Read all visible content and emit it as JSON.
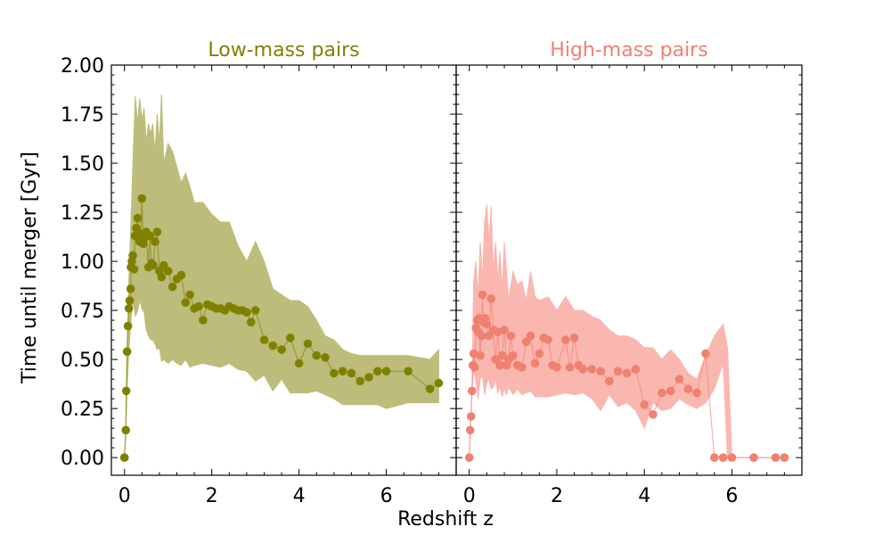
{
  "chart_data": {
    "type": "scatter",
    "xlabel": "Redshift z",
    "ylabel": "Time until merger [Gyr]",
    "ylim": [
      -0.09,
      2.0
    ],
    "yticks": [
      "0.00",
      "0.25",
      "0.50",
      "0.75",
      "1.00",
      "1.25",
      "1.50",
      "1.75",
      "2.00"
    ],
    "xticks": [
      "0",
      "2",
      "4",
      "6"
    ],
    "panels": [
      {
        "title": "Low-mass pairs",
        "color": "#808000",
        "band_color": "#bcbd7a",
        "xlim": [
          -0.3,
          7.6
        ],
        "series": {
          "x": [
            0.0,
            0.03,
            0.04,
            0.06,
            0.08,
            0.1,
            0.12,
            0.14,
            0.15,
            0.17,
            0.19,
            0.22,
            0.24,
            0.27,
            0.3,
            0.32,
            0.35,
            0.37,
            0.4,
            0.43,
            0.46,
            0.5,
            0.55,
            0.58,
            0.62,
            0.66,
            0.7,
            0.75,
            0.8,
            0.85,
            0.9,
            1.0,
            1.1,
            1.2,
            1.3,
            1.4,
            1.5,
            1.6,
            1.7,
            1.8,
            1.9,
            2.0,
            2.1,
            2.2,
            2.3,
            2.4,
            2.5,
            2.6,
            2.7,
            2.8,
            2.9,
            3.0,
            3.2,
            3.4,
            3.6,
            3.8,
            4.0,
            4.2,
            4.4,
            4.6,
            4.8,
            5.0,
            5.2,
            5.4,
            5.6,
            5.8,
            6.0,
            6.5,
            7.0,
            7.2
          ],
          "y": [
            0.0,
            0.14,
            0.34,
            0.54,
            0.67,
            0.76,
            0.8,
            0.86,
            0.97,
            1.0,
            1.03,
            0.96,
            1.13,
            1.17,
            1.22,
            1.12,
            1.1,
            1.14,
            1.32,
            1.09,
            1.12,
            1.15,
            0.97,
            1.13,
            0.99,
            0.98,
            1.1,
            1.15,
            0.95,
            0.92,
            0.98,
            0.95,
            0.87,
            0.91,
            0.93,
            0.79,
            0.83,
            0.76,
            0.77,
            0.7,
            0.78,
            0.77,
            0.76,
            0.76,
            0.75,
            0.77,
            0.76,
            0.75,
            0.75,
            0.74,
            0.69,
            0.75,
            0.6,
            0.57,
            0.55,
            0.61,
            0.48,
            0.58,
            0.52,
            0.51,
            0.43,
            0.44,
            0.43,
            0.39,
            0.41,
            0.44,
            0.44,
            0.44,
            0.35,
            0.38
          ]
        },
        "band": {
          "x": [
            0.0,
            0.03,
            0.06,
            0.1,
            0.15,
            0.2,
            0.25,
            0.3,
            0.35,
            0.4,
            0.45,
            0.5,
            0.55,
            0.6,
            0.65,
            0.7,
            0.75,
            0.8,
            0.85,
            0.9,
            1.0,
            1.1,
            1.2,
            1.3,
            1.4,
            1.5,
            1.6,
            1.8,
            2.0,
            2.2,
            2.4,
            2.6,
            2.8,
            3.0,
            3.2,
            3.4,
            3.6,
            3.8,
            4.0,
            4.2,
            4.4,
            4.6,
            4.8,
            5.0,
            5.2,
            5.4,
            5.6,
            5.8,
            6.0,
            6.5,
            7.0,
            7.2
          ],
          "upper": [
            0.0,
            0.14,
            0.54,
            0.9,
            1.2,
            1.55,
            1.84,
            1.7,
            1.83,
            1.72,
            1.78,
            1.6,
            1.7,
            1.65,
            1.7,
            1.55,
            1.75,
            1.6,
            1.85,
            1.5,
            1.6,
            1.56,
            1.48,
            1.4,
            1.45,
            1.38,
            1.3,
            1.3,
            1.24,
            1.2,
            1.2,
            1.08,
            1.0,
            1.1,
            1.0,
            0.86,
            0.83,
            0.8,
            0.8,
            0.77,
            0.7,
            0.62,
            0.6,
            0.55,
            0.53,
            0.52,
            0.52,
            0.52,
            0.52,
            0.52,
            0.5,
            0.55
          ],
          "lower": [
            0.0,
            0.14,
            0.34,
            0.54,
            0.7,
            0.8,
            0.72,
            0.75,
            0.8,
            0.76,
            0.74,
            0.65,
            0.62,
            0.6,
            0.6,
            0.58,
            0.55,
            0.56,
            0.49,
            0.5,
            0.48,
            0.5,
            0.48,
            0.47,
            0.5,
            0.46,
            0.47,
            0.48,
            0.47,
            0.46,
            0.48,
            0.45,
            0.44,
            0.39,
            0.42,
            0.34,
            0.4,
            0.33,
            0.33,
            0.33,
            0.34,
            0.32,
            0.3,
            0.27,
            0.27,
            0.27,
            0.27,
            0.27,
            0.25,
            0.28,
            0.28,
            0.28
          ]
        }
      },
      {
        "title": "High-mass  pairs",
        "color": "#f08070",
        "band_color": "#f9b7b0",
        "xlim": [
          -0.3,
          7.6
        ],
        "series": {
          "x": [
            0.0,
            0.02,
            0.04,
            0.06,
            0.08,
            0.1,
            0.12,
            0.15,
            0.18,
            0.2,
            0.22,
            0.25,
            0.28,
            0.3,
            0.33,
            0.36,
            0.4,
            0.45,
            0.5,
            0.55,
            0.6,
            0.65,
            0.7,
            0.75,
            0.8,
            0.85,
            0.9,
            0.95,
            1.0,
            1.1,
            1.2,
            1.3,
            1.4,
            1.5,
            1.6,
            1.7,
            1.8,
            1.9,
            2.0,
            2.2,
            2.3,
            2.4,
            2.5,
            2.6,
            2.8,
            3.0,
            3.2,
            3.4,
            3.6,
            3.8,
            4.0,
            4.2,
            4.4,
            4.6,
            4.8,
            5.0,
            5.2,
            5.4,
            5.6,
            5.8,
            6.0,
            6.5,
            7.0,
            7.2
          ],
          "y": [
            0.0,
            0.14,
            0.21,
            0.34,
            0.47,
            0.53,
            0.46,
            0.66,
            0.7,
            0.64,
            0.71,
            0.52,
            0.62,
            0.83,
            0.69,
            0.71,
            0.68,
            0.62,
            0.81,
            0.65,
            0.5,
            0.64,
            0.47,
            0.52,
            0.65,
            0.47,
            0.5,
            0.62,
            0.52,
            0.47,
            0.46,
            0.59,
            0.62,
            0.48,
            0.53,
            0.61,
            0.6,
            0.47,
            0.46,
            0.6,
            0.46,
            0.61,
            0.47,
            0.45,
            0.45,
            0.44,
            0.39,
            0.44,
            0.43,
            0.45,
            0.27,
            0.22,
            0.33,
            0.34,
            0.4,
            0.35,
            0.33,
            0.53,
            0.0,
            0.0,
            0.0,
            0.0,
            0.0,
            0.0
          ],
          "note": ""
        },
        "band": {
          "x": [
            0.0,
            0.02,
            0.04,
            0.06,
            0.1,
            0.15,
            0.2,
            0.25,
            0.3,
            0.35,
            0.4,
            0.45,
            0.5,
            0.55,
            0.6,
            0.65,
            0.7,
            0.75,
            0.8,
            0.85,
            0.9,
            1.0,
            1.1,
            1.2,
            1.3,
            1.4,
            1.5,
            1.6,
            1.8,
            2.0,
            2.2,
            2.4,
            2.6,
            2.8,
            3.0,
            3.2,
            3.4,
            3.6,
            3.8,
            4.0,
            4.2,
            4.4,
            4.6,
            4.8,
            5.0,
            5.2,
            5.4,
            5.6,
            5.8,
            5.9,
            6.0,
            6.5,
            7.0,
            7.2
          ],
          "upper": [
            0.0,
            0.14,
            0.21,
            0.34,
            0.9,
            1.0,
            0.82,
            1.1,
            0.9,
            1.2,
            1.29,
            1.1,
            1.28,
            0.95,
            1.1,
            0.9,
            1.05,
            0.85,
            1.1,
            0.95,
            0.8,
            0.95,
            0.88,
            0.9,
            0.8,
            0.95,
            0.82,
            0.8,
            0.82,
            0.75,
            0.82,
            0.75,
            0.75,
            0.72,
            0.7,
            0.65,
            0.62,
            0.62,
            0.6,
            0.56,
            0.56,
            0.5,
            0.55,
            0.5,
            0.43,
            0.4,
            0.52,
            0.62,
            0.68,
            0.56,
            0.0,
            0.0,
            0.0,
            0.0
          ],
          "lower": [
            0.0,
            0.14,
            0.21,
            0.34,
            0.44,
            0.4,
            0.3,
            0.4,
            0.42,
            0.32,
            0.38,
            0.4,
            0.35,
            0.36,
            0.4,
            0.33,
            0.36,
            0.31,
            0.35,
            0.32,
            0.36,
            0.32,
            0.35,
            0.32,
            0.33,
            0.34,
            0.31,
            0.31,
            0.31,
            0.32,
            0.33,
            0.32,
            0.33,
            0.3,
            0.24,
            0.32,
            0.26,
            0.28,
            0.24,
            0.15,
            0.28,
            0.24,
            0.25,
            0.3,
            0.27,
            0.25,
            0.28,
            0.35,
            0.48,
            0.0,
            0.0,
            0.0,
            0.0,
            0.0
          ]
        }
      }
    ]
  }
}
